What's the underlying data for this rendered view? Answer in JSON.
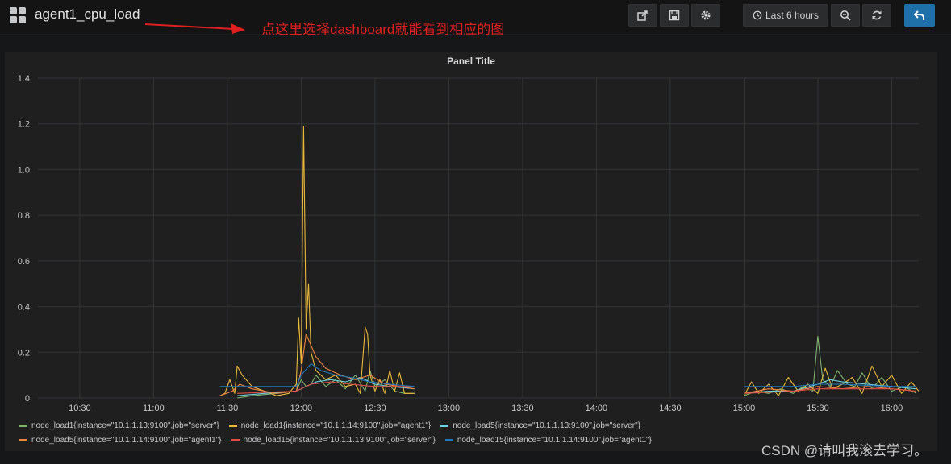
{
  "header": {
    "title": "agent1_cpu_load",
    "annotation": "点这里选择dashboard就能看到相应的图",
    "time_range_label": "Last 6 hours"
  },
  "toolbar": {
    "icons": [
      "share-icon",
      "save-icon",
      "gear-icon",
      "clock-icon",
      "zoom-out-icon",
      "refresh-icon",
      "back-icon"
    ]
  },
  "panel": {
    "title": "Panel Title"
  },
  "colors": {
    "node_load1_server": "#7eb26d",
    "node_load1_agent1": "#eab839",
    "node_load5_server": "#6ed0e0",
    "node_load5_agent1": "#ef843c",
    "node_load15_server": "#e24d42",
    "node_load15_agent1": "#1f78c1"
  },
  "chart_data": {
    "type": "line",
    "title": "Panel Title",
    "xlabel": "",
    "ylabel": "",
    "ylim": [
      0,
      1.4
    ],
    "yticks": [
      "0",
      "0.2",
      "0.4",
      "0.6",
      "0.8",
      "1.0",
      "1.2",
      "1.4"
    ],
    "xticks": [
      "10:30",
      "11:00",
      "11:30",
      "12:00",
      "12:30",
      "13:00",
      "13:30",
      "14:00",
      "14:30",
      "15:00",
      "15:30",
      "16:00"
    ],
    "xlim": [
      "10:13",
      "16:11"
    ],
    "grid": true,
    "legend_placement": "bottom",
    "series": [
      {
        "name": "node_load1{instance=\"10.1.1.13:9100\",job=\"server\"}",
        "color": "#7eb26d",
        "segments": [
          {
            "x": [
              "11:34",
              "11:40",
              "11:50",
              "11:58",
              "12:00",
              "12:02",
              "12:04",
              "12:06",
              "12:10",
              "12:14",
              "12:18",
              "12:22",
              "12:26",
              "12:28",
              "12:30",
              "12:34",
              "12:38",
              "12:42",
              "12:46"
            ],
            "y": [
              0.0,
              0.01,
              0.02,
              0.03,
              0.08,
              0.05,
              0.06,
              0.1,
              0.05,
              0.08,
              0.04,
              0.1,
              0.03,
              0.12,
              0.05,
              0.08,
              0.03,
              0.02,
              0.02
            ]
          },
          {
            "x": [
              "15:00",
              "15:05",
              "15:10",
              "15:15",
              "15:20",
              "15:24",
              "15:28",
              "15:30",
              "15:32",
              "15:35",
              "15:38",
              "15:42",
              "15:45",
              "15:48",
              "15:52",
              "15:56",
              "16:00",
              "16:05",
              "16:10"
            ],
            "y": [
              0.01,
              0.03,
              0.02,
              0.04,
              0.02,
              0.05,
              0.03,
              0.27,
              0.08,
              0.05,
              0.12,
              0.06,
              0.05,
              0.11,
              0.04,
              0.09,
              0.03,
              0.05,
              0.02
            ]
          }
        ]
      },
      {
        "name": "node_load1{instance=\"10.1.1.14:9100\",job=\"agent1\"}",
        "color": "#eab839",
        "segments": [
          {
            "x": [
              "11:27",
              "11:29",
              "11:31",
              "11:33",
              "11:34",
              "11:36",
              "11:40",
              "11:45",
              "11:50",
              "11:55",
              "11:58",
              "11:59",
              "12:00",
              "12:01",
              "12:02",
              "12:03",
              "12:04",
              "12:06",
              "12:10",
              "12:14",
              "12:18",
              "12:22",
              "12:24",
              "12:26",
              "12:27",
              "12:28",
              "12:30",
              "12:32",
              "12:34",
              "12:36",
              "12:38",
              "12:40",
              "12:42",
              "12:46"
            ],
            "y": [
              0.01,
              0.02,
              0.08,
              0.02,
              0.14,
              0.1,
              0.05,
              0.03,
              0.01,
              0.02,
              0.06,
              0.35,
              0.15,
              1.19,
              0.3,
              0.5,
              0.2,
              0.12,
              0.08,
              0.1,
              0.05,
              0.06,
              0.02,
              0.31,
              0.28,
              0.1,
              0.03,
              0.08,
              0.02,
              0.12,
              0.03,
              0.11,
              0.02,
              0.02
            ]
          },
          {
            "x": [
              "15:00",
              "15:03",
              "15:06",
              "15:10",
              "15:14",
              "15:18",
              "15:22",
              "15:26",
              "15:30",
              "15:33",
              "15:36",
              "15:40",
              "15:44",
              "15:48",
              "15:52",
              "15:56",
              "16:00",
              "16:04",
              "16:08",
              "16:11"
            ],
            "y": [
              0.01,
              0.07,
              0.02,
              0.06,
              0.01,
              0.09,
              0.03,
              0.06,
              0.02,
              0.13,
              0.04,
              0.06,
              0.09,
              0.02,
              0.14,
              0.05,
              0.1,
              0.02,
              0.07,
              0.03
            ]
          }
        ]
      },
      {
        "name": "node_load5{instance=\"10.1.1.13:9100\",job=\"server\"}",
        "color": "#6ed0e0",
        "segments": [
          {
            "x": [
              "11:34",
              "11:45",
              "11:58",
              "12:02",
              "12:06",
              "12:12",
              "12:18",
              "12:24",
              "12:30",
              "12:36",
              "12:46"
            ],
            "y": [
              0.01,
              0.02,
              0.03,
              0.05,
              0.07,
              0.08,
              0.07,
              0.09,
              0.06,
              0.05,
              0.04
            ]
          },
          {
            "x": [
              "15:00",
              "15:10",
              "15:20",
              "15:30",
              "15:35",
              "15:40",
              "15:50",
              "16:00",
              "16:10"
            ],
            "y": [
              0.02,
              0.03,
              0.03,
              0.06,
              0.08,
              0.07,
              0.06,
              0.05,
              0.04
            ]
          }
        ]
      },
      {
        "name": "node_load5{instance=\"10.1.1.14:9100\",job=\"agent1\"}",
        "color": "#ef843c",
        "segments": [
          {
            "x": [
              "11:27",
              "11:32",
              "11:35",
              "11:40",
              "11:50",
              "11:58",
              "12:00",
              "12:02",
              "12:06",
              "12:10",
              "12:16",
              "12:22",
              "12:28",
              "12:34",
              "12:40",
              "12:46"
            ],
            "y": [
              0.01,
              0.03,
              0.06,
              0.04,
              0.02,
              0.03,
              0.12,
              0.28,
              0.18,
              0.13,
              0.1,
              0.08,
              0.1,
              0.06,
              0.05,
              0.04
            ]
          },
          {
            "x": [
              "15:00",
              "15:10",
              "15:20",
              "15:30",
              "15:40",
              "15:50",
              "16:00",
              "16:10"
            ],
            "y": [
              0.02,
              0.04,
              0.03,
              0.05,
              0.04,
              0.05,
              0.04,
              0.03
            ]
          }
        ]
      },
      {
        "name": "node_load15{instance=\"10.1.1.13:9100\",job=\"server\"}",
        "color": "#e24d42",
        "segments": [
          {
            "x": [
              "11:34",
              "11:58",
              "12:04",
              "12:12",
              "12:20",
              "12:30",
              "12:46"
            ],
            "y": [
              0.02,
              0.03,
              0.06,
              0.07,
              0.06,
              0.05,
              0.05
            ]
          },
          {
            "x": [
              "15:00",
              "15:20",
              "15:30",
              "15:45",
              "16:00",
              "16:10"
            ],
            "y": [
              0.02,
              0.03,
              0.04,
              0.04,
              0.04,
              0.03
            ]
          }
        ]
      },
      {
        "name": "node_load15{instance=\"10.1.1.14:9100\",job=\"agent1\"}",
        "color": "#1f78c1",
        "segments": [
          {
            "x": [
              "11:27",
              "11:34",
              "11:58",
              "12:00",
              "12:04",
              "12:08",
              "12:14",
              "12:20",
              "12:28",
              "12:36",
              "12:46"
            ],
            "y": [
              0.05,
              0.05,
              0.05,
              0.1,
              0.15,
              0.12,
              0.1,
              0.09,
              0.07,
              0.06,
              0.05
            ]
          },
          {
            "x": [
              "15:00",
              "15:20",
              "15:30",
              "15:40",
              "16:00",
              "16:10"
            ],
            "y": [
              0.05,
              0.05,
              0.06,
              0.06,
              0.05,
              0.05
            ]
          }
        ]
      }
    ]
  },
  "watermark": "CSDN @请叫我滚去学习。"
}
